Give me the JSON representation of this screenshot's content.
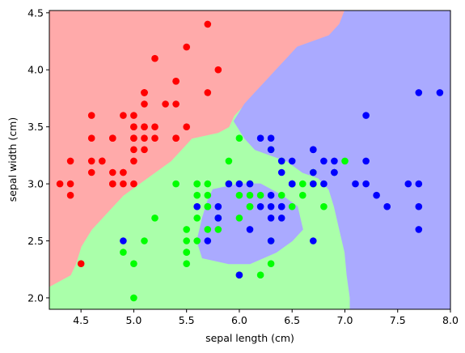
{
  "chart_data": {
    "type": "scatter",
    "title": "",
    "xlabel": "sepal length (cm)",
    "ylabel": "sepal width (cm)",
    "xlim": [
      4.2,
      8.0
    ],
    "ylim": [
      1.9,
      4.52
    ],
    "xticks": [
      "4.5",
      "5.0",
      "5.5",
      "6.0",
      "6.5",
      "7.0",
      "7.5",
      "8.0"
    ],
    "xtick_values": [
      4.5,
      5.0,
      5.5,
      6.0,
      6.5,
      7.0,
      7.5,
      8.0
    ],
    "yticks": [
      "2.0",
      "2.5",
      "3.0",
      "3.5",
      "4.0",
      "4.5"
    ],
    "ytick_values": [
      2.0,
      2.5,
      3.0,
      3.5,
      4.0,
      4.5
    ],
    "grid": false,
    "background_regions": [
      {
        "class": 0,
        "color": "#ffaaaa",
        "boundary_polygon": [
          [
            4.2,
            4.52
          ],
          [
            7.0,
            4.52
          ],
          [
            6.95,
            4.4
          ],
          [
            6.85,
            4.3
          ],
          [
            6.55,
            4.2
          ],
          [
            6.45,
            4.1
          ],
          [
            6.35,
            4.0
          ],
          [
            6.25,
            3.9
          ],
          [
            6.15,
            3.8
          ],
          [
            6.05,
            3.7
          ],
          [
            5.95,
            3.6
          ],
          [
            5.9,
            3.5
          ],
          [
            5.8,
            3.45
          ],
          [
            5.55,
            3.4
          ],
          [
            5.45,
            3.3
          ],
          [
            5.35,
            3.2
          ],
          [
            5.2,
            3.1
          ],
          [
            5.05,
            3.0
          ],
          [
            4.9,
            2.9
          ],
          [
            4.8,
            2.8
          ],
          [
            4.7,
            2.7
          ],
          [
            4.6,
            2.6
          ],
          [
            4.5,
            2.45
          ],
          [
            4.45,
            2.3
          ],
          [
            4.4,
            2.2
          ],
          [
            4.2,
            2.1
          ]
        ]
      },
      {
        "class": 1,
        "color": "#aaffaa"
      },
      {
        "class": 2,
        "color": "#aaaaff",
        "boundary_polygon": [
          [
            7.0,
            4.52
          ],
          [
            8.0,
            4.52
          ],
          [
            8.0,
            1.9
          ],
          [
            7.05,
            1.9
          ],
          [
            7.05,
            2.0
          ],
          [
            7.02,
            2.2
          ],
          [
            7.0,
            2.4
          ],
          [
            6.95,
            2.6
          ],
          [
            6.9,
            2.8
          ],
          [
            6.85,
            2.95
          ],
          [
            6.75,
            3.05
          ],
          [
            6.6,
            3.1
          ],
          [
            6.45,
            3.2
          ],
          [
            6.3,
            3.25
          ],
          [
            6.15,
            3.3
          ],
          [
            6.05,
            3.4
          ],
          [
            5.95,
            3.55
          ],
          [
            6.05,
            3.7
          ],
          [
            6.15,
            3.8
          ],
          [
            6.25,
            3.9
          ],
          [
            6.35,
            4.0
          ],
          [
            6.45,
            4.1
          ],
          [
            6.55,
            4.2
          ],
          [
            6.85,
            4.3
          ],
          [
            6.95,
            4.4
          ]
        ]
      },
      {
        "class": 2,
        "color": "#aaaaff",
        "boundary_polygon": [
          [
            5.75,
            2.95
          ],
          [
            6.0,
            3.0
          ],
          [
            6.2,
            3.0
          ],
          [
            6.4,
            2.9
          ],
          [
            6.55,
            2.8
          ],
          [
            6.6,
            2.6
          ],
          [
            6.5,
            2.5
          ],
          [
            6.35,
            2.4
          ],
          [
            6.1,
            2.3
          ],
          [
            5.9,
            2.3
          ],
          [
            5.65,
            2.35
          ],
          [
            5.6,
            2.5
          ],
          [
            5.65,
            2.7
          ],
          [
            5.7,
            2.85
          ]
        ]
      }
    ],
    "series": [
      {
        "name": "",
        "color": "#ff0000",
        "points": [
          [
            5.1,
            3.5
          ],
          [
            4.9,
            3.0
          ],
          [
            4.7,
            3.2
          ],
          [
            4.6,
            3.1
          ],
          [
            5.0,
            3.6
          ],
          [
            5.4,
            3.9
          ],
          [
            4.6,
            3.4
          ],
          [
            5.0,
            3.4
          ],
          [
            4.4,
            2.9
          ],
          [
            4.9,
            3.1
          ],
          [
            5.4,
            3.7
          ],
          [
            4.8,
            3.4
          ],
          [
            4.8,
            3.0
          ],
          [
            4.3,
            3.0
          ],
          [
            5.8,
            4.0
          ],
          [
            5.7,
            4.4
          ],
          [
            5.4,
            3.9
          ],
          [
            5.1,
            3.5
          ],
          [
            5.7,
            3.8
          ],
          [
            5.1,
            3.8
          ],
          [
            5.4,
            3.4
          ],
          [
            5.1,
            3.7
          ],
          [
            4.6,
            3.6
          ],
          [
            5.1,
            3.3
          ],
          [
            4.8,
            3.4
          ],
          [
            5.0,
            3.0
          ],
          [
            5.0,
            3.4
          ],
          [
            5.2,
            3.5
          ],
          [
            5.2,
            3.4
          ],
          [
            4.7,
            3.2
          ],
          [
            4.8,
            3.1
          ],
          [
            5.4,
            3.4
          ],
          [
            5.2,
            4.1
          ],
          [
            5.5,
            4.2
          ],
          [
            4.9,
            3.1
          ],
          [
            5.0,
            3.2
          ],
          [
            5.5,
            3.5
          ],
          [
            4.9,
            3.6
          ],
          [
            4.4,
            3.0
          ],
          [
            5.1,
            3.4
          ],
          [
            5.0,
            3.5
          ],
          [
            4.5,
            2.3
          ],
          [
            4.4,
            3.2
          ],
          [
            5.0,
            3.5
          ],
          [
            5.1,
            3.8
          ],
          [
            4.8,
            3.0
          ],
          [
            5.1,
            3.8
          ],
          [
            4.6,
            3.2
          ],
          [
            5.3,
            3.7
          ],
          [
            5.0,
            3.3
          ]
        ]
      },
      {
        "name": "",
        "color": "#00ff00",
        "points": [
          [
            7.0,
            3.2
          ],
          [
            6.4,
            3.2
          ],
          [
            6.9,
            3.1
          ],
          [
            5.5,
            2.3
          ],
          [
            6.5,
            2.8
          ],
          [
            5.7,
            2.8
          ],
          [
            6.3,
            3.3
          ],
          [
            4.9,
            2.4
          ],
          [
            6.6,
            2.9
          ],
          [
            5.2,
            2.7
          ],
          [
            5.0,
            2.0
          ],
          [
            5.9,
            3.0
          ],
          [
            6.0,
            2.2
          ],
          [
            6.1,
            2.9
          ],
          [
            5.6,
            2.9
          ],
          [
            6.7,
            3.1
          ],
          [
            5.6,
            3.0
          ],
          [
            5.8,
            2.7
          ],
          [
            6.2,
            2.2
          ],
          [
            5.6,
            2.5
          ],
          [
            5.9,
            3.2
          ],
          [
            6.1,
            2.8
          ],
          [
            6.3,
            2.5
          ],
          [
            6.1,
            2.8
          ],
          [
            6.4,
            2.9
          ],
          [
            6.6,
            3.0
          ],
          [
            6.8,
            2.8
          ],
          [
            6.7,
            3.0
          ],
          [
            6.0,
            2.9
          ],
          [
            5.7,
            2.6
          ],
          [
            5.5,
            2.4
          ],
          [
            5.5,
            2.4
          ],
          [
            5.8,
            2.7
          ],
          [
            6.0,
            2.7
          ],
          [
            5.4,
            3.0
          ],
          [
            6.0,
            3.4
          ],
          [
            6.7,
            3.1
          ],
          [
            6.3,
            2.3
          ],
          [
            5.6,
            3.0
          ],
          [
            5.5,
            2.5
          ],
          [
            5.5,
            2.6
          ],
          [
            6.1,
            3.0
          ],
          [
            5.8,
            2.6
          ],
          [
            5.0,
            2.3
          ],
          [
            5.6,
            2.7
          ],
          [
            5.7,
            3.0
          ],
          [
            5.7,
            2.9
          ],
          [
            6.2,
            2.9
          ],
          [
            5.1,
            2.5
          ],
          [
            5.7,
            2.8
          ]
        ]
      },
      {
        "name": "",
        "color": "#0000ff",
        "points": [
          [
            6.3,
            3.3
          ],
          [
            5.8,
            2.7
          ],
          [
            7.1,
            3.0
          ],
          [
            6.3,
            2.9
          ],
          [
            6.5,
            3.0
          ],
          [
            7.6,
            3.0
          ],
          [
            4.9,
            2.5
          ],
          [
            7.3,
            2.9
          ],
          [
            6.7,
            2.5
          ],
          [
            7.2,
            3.6
          ],
          [
            6.5,
            3.2
          ],
          [
            6.4,
            2.7
          ],
          [
            6.8,
            3.0
          ],
          [
            5.7,
            2.5
          ],
          [
            5.8,
            2.8
          ],
          [
            6.4,
            3.2
          ],
          [
            6.5,
            3.0
          ],
          [
            7.7,
            3.8
          ],
          [
            7.7,
            2.6
          ],
          [
            6.0,
            2.2
          ],
          [
            6.9,
            3.2
          ],
          [
            5.6,
            2.8
          ],
          [
            7.7,
            2.8
          ],
          [
            6.3,
            2.7
          ],
          [
            6.7,
            3.3
          ],
          [
            7.2,
            3.2
          ],
          [
            6.2,
            2.8
          ],
          [
            6.1,
            3.0
          ],
          [
            6.4,
            2.8
          ],
          [
            7.2,
            3.0
          ],
          [
            7.4,
            2.8
          ],
          [
            7.9,
            3.8
          ],
          [
            6.4,
            2.8
          ],
          [
            6.3,
            2.8
          ],
          [
            6.1,
            2.6
          ],
          [
            7.7,
            3.0
          ],
          [
            6.3,
            3.4
          ],
          [
            6.4,
            3.1
          ],
          [
            6.0,
            3.0
          ],
          [
            6.9,
            3.1
          ],
          [
            6.7,
            3.1
          ],
          [
            6.9,
            3.1
          ],
          [
            5.8,
            2.7
          ],
          [
            6.8,
            3.2
          ],
          [
            6.7,
            3.3
          ],
          [
            6.7,
            3.0
          ],
          [
            6.3,
            2.5
          ],
          [
            6.5,
            3.0
          ],
          [
            6.2,
            3.4
          ],
          [
            5.9,
            3.0
          ]
        ]
      }
    ]
  }
}
